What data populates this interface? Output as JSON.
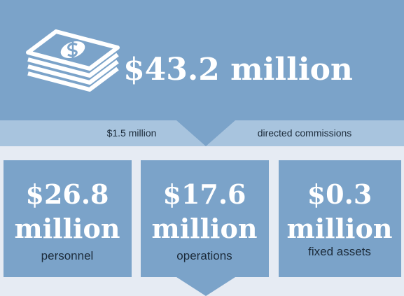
{
  "total": {
    "amount": "$43.2 million"
  },
  "band": {
    "left": "$1.5 million",
    "right": "directed commissions"
  },
  "boxes": [
    {
      "amount": "$26.8",
      "unit": "million",
      "label": "personnel"
    },
    {
      "amount": "$17.6",
      "unit": "million",
      "label": "operations"
    },
    {
      "amount": "$0.3",
      "unit": "million",
      "label": "fixed assets"
    }
  ]
}
